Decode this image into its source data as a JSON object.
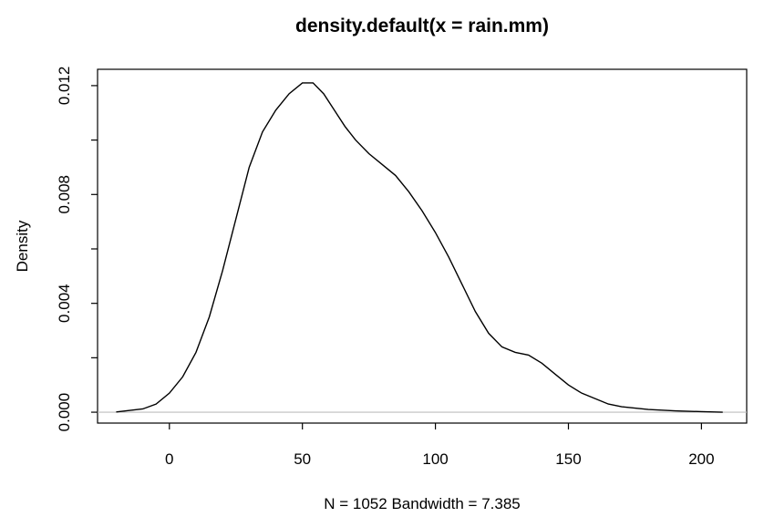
{
  "chart_data": {
    "type": "line",
    "title": "density.default(x = rain.mm)",
    "xlabel": "N = 1052   Bandwidth = 7.385",
    "ylabel": "Density",
    "xlim": [
      -27,
      217
    ],
    "ylim": [
      -0.0004,
      0.0126
    ],
    "x_ticks": [
      0,
      50,
      100,
      150,
      200
    ],
    "x_tick_labels": [
      "0",
      "50",
      "100",
      "150",
      "200"
    ],
    "y_ticks": [
      0,
      0.002,
      0.004,
      0.006,
      0.008,
      0.01,
      0.012
    ],
    "y_tick_labels": [
      "0.000",
      "",
      "0.004",
      "",
      "0.008",
      "",
      "0.012"
    ],
    "zero_line": true,
    "grid": false,
    "series": [
      {
        "x": [
          -20,
          -10,
          -5,
          0,
          5,
          10,
          15,
          20,
          25,
          30,
          35,
          40,
          45,
          50,
          54,
          58,
          62,
          66,
          70,
          75,
          80,
          85,
          90,
          95,
          100,
          105,
          110,
          115,
          120,
          125,
          130,
          135,
          140,
          145,
          150,
          155,
          160,
          165,
          170,
          175,
          180,
          190,
          200,
          208
        ],
        "y": [
          1e-05,
          0.00012,
          0.0003,
          0.0007,
          0.0013,
          0.0022,
          0.0035,
          0.0052,
          0.0071,
          0.009,
          0.0103,
          0.0111,
          0.0117,
          0.0121,
          0.0121,
          0.0117,
          0.0111,
          0.0105,
          0.01,
          0.0095,
          0.0091,
          0.0087,
          0.0081,
          0.0074,
          0.0066,
          0.0057,
          0.0047,
          0.0037,
          0.0029,
          0.0024,
          0.0022,
          0.0021,
          0.0018,
          0.0014,
          0.001,
          0.0007,
          0.0005,
          0.0003,
          0.0002,
          0.00015,
          0.0001,
          5e-05,
          2e-05,
          0.0
        ]
      }
    ]
  }
}
